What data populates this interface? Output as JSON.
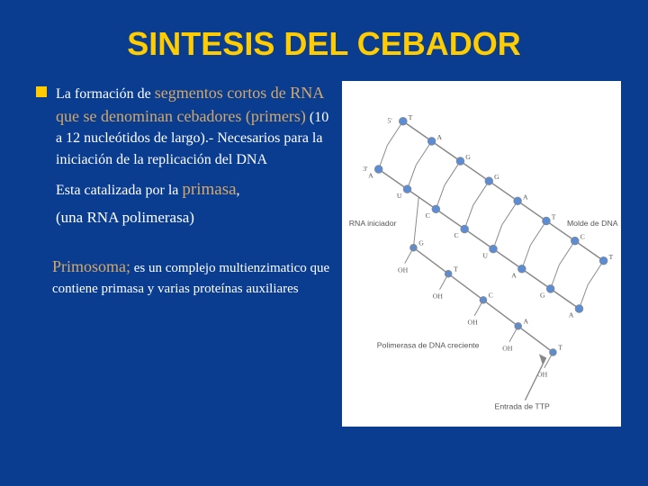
{
  "title": "SINTESIS DEL CEBADOR",
  "para1": {
    "t1": "La formación de ",
    "h1": "segmentos cortos de RNA que se denominan cebadores (primers)",
    "t2": " (10 a 12 nucleótidos de largo).- Necesarios para la iniciación de la replicación del DNA"
  },
  "para2": {
    "t1": "Esta catalizada por la ",
    "h1": "primasa",
    "t2": ", ",
    "t3": "(una RNA polimerasa)"
  },
  "para3": {
    "h1": "Primosoma;",
    "t1": " es un complejo multienzimatico que contiene primasa y varias proteínas auxiliares"
  },
  "diagram": {
    "label_rna": "RNA iniciador",
    "label_molde": "Molde de DNA",
    "label_pol": "Polimerasa de DNA creciente",
    "label_entrada": "Entrada de TTP",
    "colors": {
      "backbone": "#888888",
      "node": "#5b8dd6",
      "text": "#555555",
      "bg": "#ffffff"
    },
    "top_bases": [
      "T",
      "A",
      "G",
      "G",
      "A",
      "T",
      "C",
      "T"
    ],
    "bottom_bases": [
      "A",
      "U",
      "C",
      "C",
      "U",
      "A",
      "G",
      "A"
    ],
    "mid_labels": [
      "OH",
      "OH",
      "OH",
      "OH",
      "OH"
    ],
    "extra_bases": [
      "G",
      "T",
      "C",
      "A",
      "T"
    ]
  }
}
